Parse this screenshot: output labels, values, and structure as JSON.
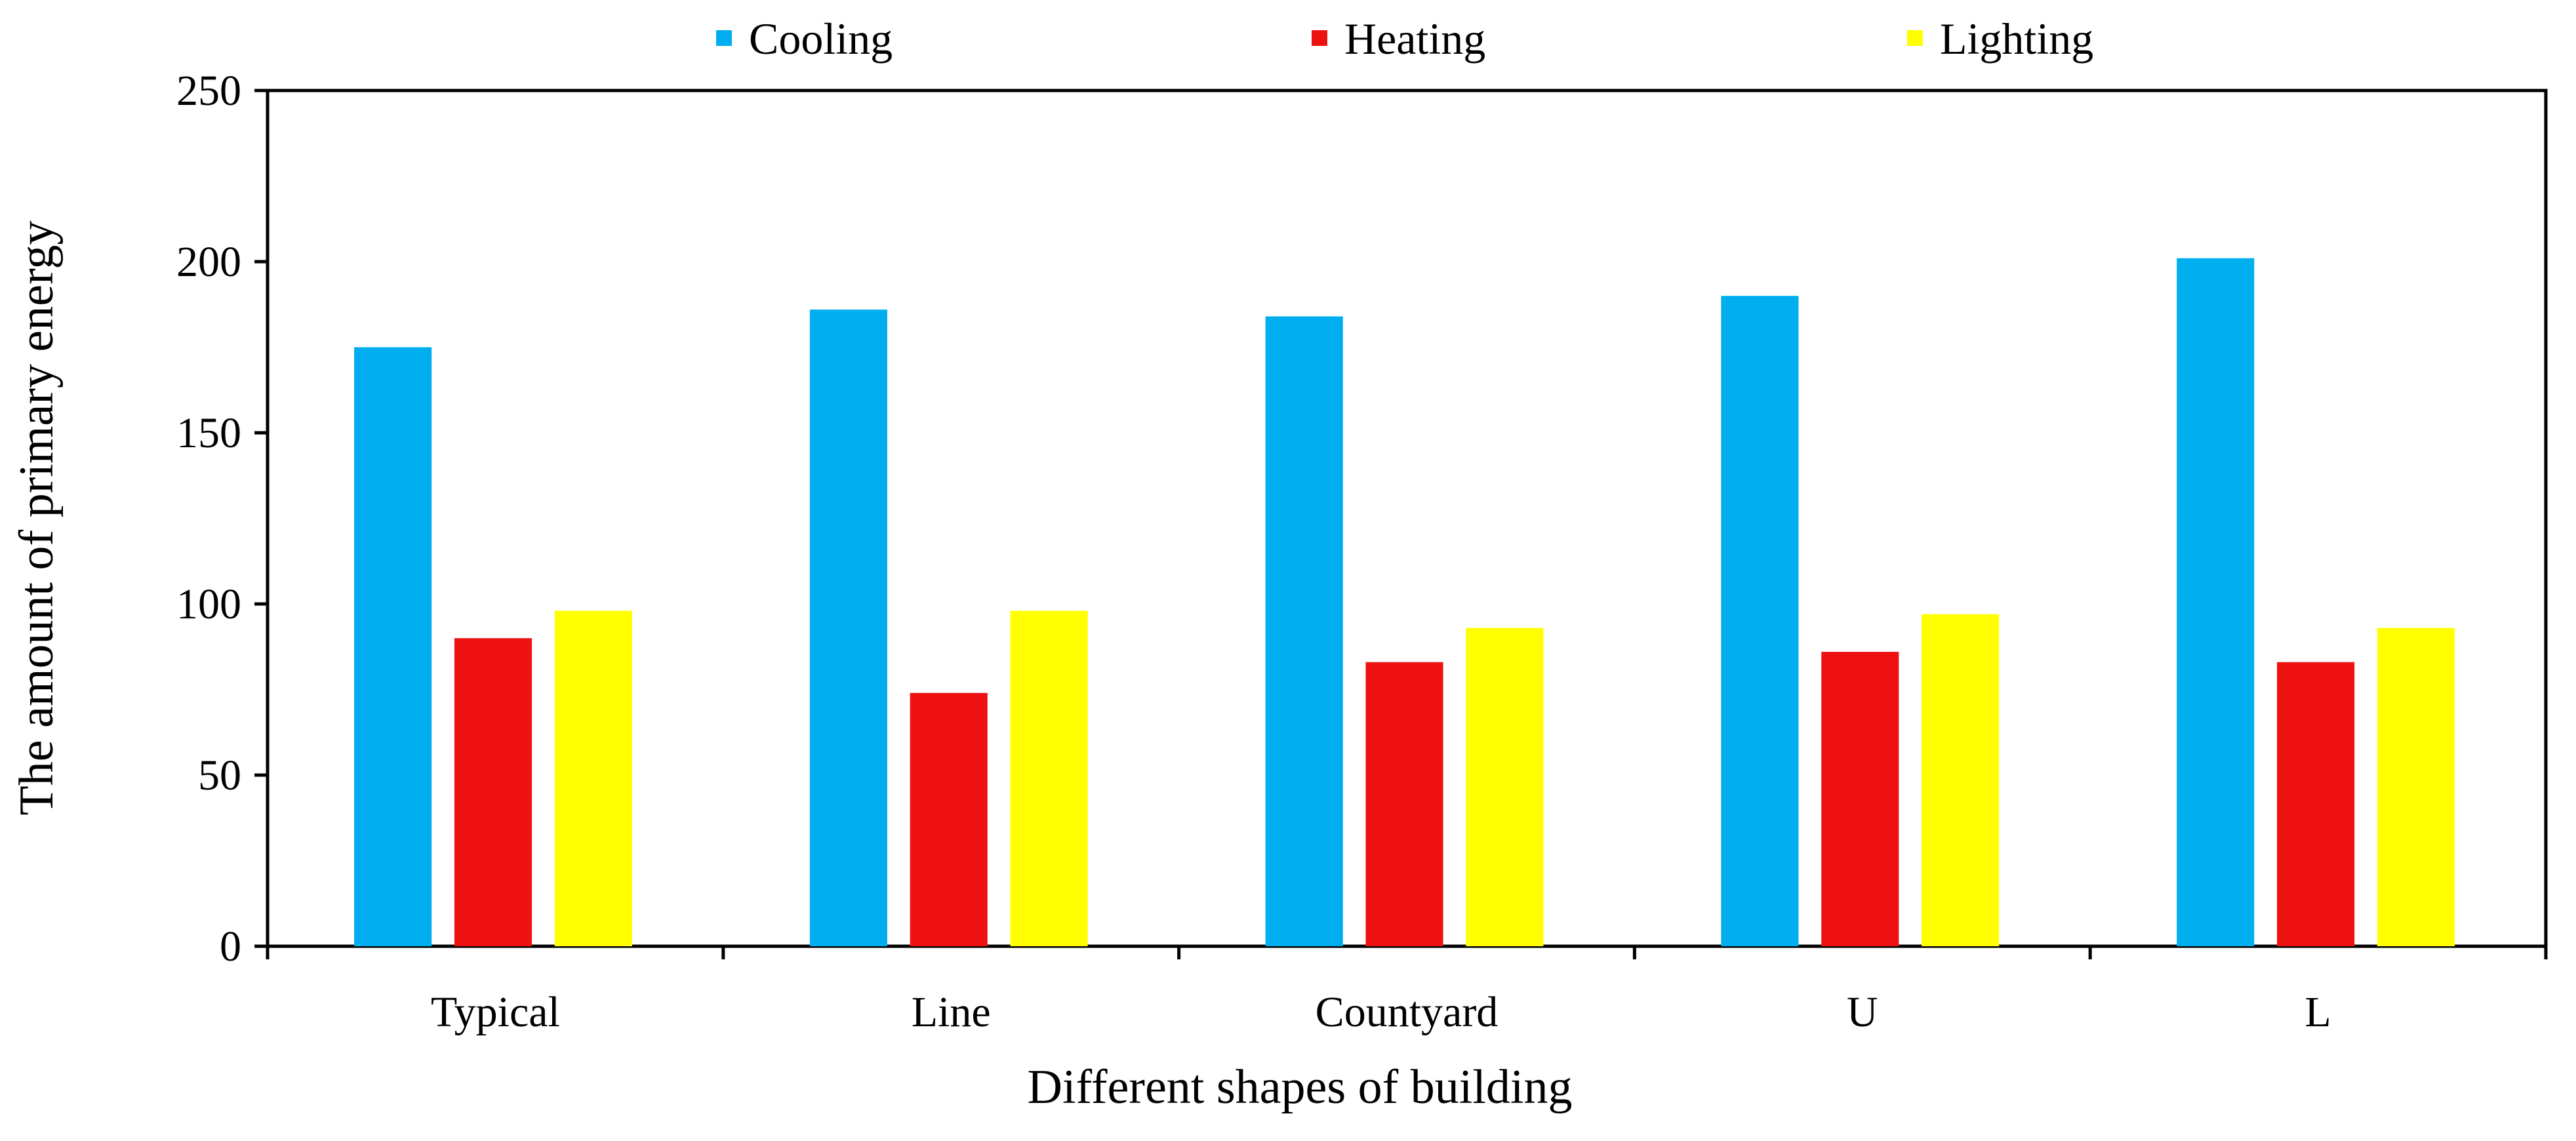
{
  "chart_data": {
    "type": "bar",
    "title": "",
    "xlabel": "Different shapes of building",
    "ylabel": "The amount of primary energy",
    "categories": [
      "Typical",
      "Line",
      "Countyard",
      "U",
      "L"
    ],
    "series": [
      {
        "name": "Cooling",
        "color": "#00AEEF",
        "values": [
          175,
          186,
          184,
          190,
          201
        ]
      },
      {
        "name": "Heating",
        "color": "#EE1111",
        "values": [
          90,
          74,
          83,
          86,
          83
        ]
      },
      {
        "name": "Lighting",
        "color": "#FFFF00",
        "values": [
          98,
          98,
          93,
          97,
          93
        ]
      }
    ],
    "ylim": [
      0,
      250
    ],
    "yticks": [
      "0",
      "50",
      "100",
      "150",
      "200",
      "250"
    ],
    "grid": false,
    "legend": "top-center"
  }
}
